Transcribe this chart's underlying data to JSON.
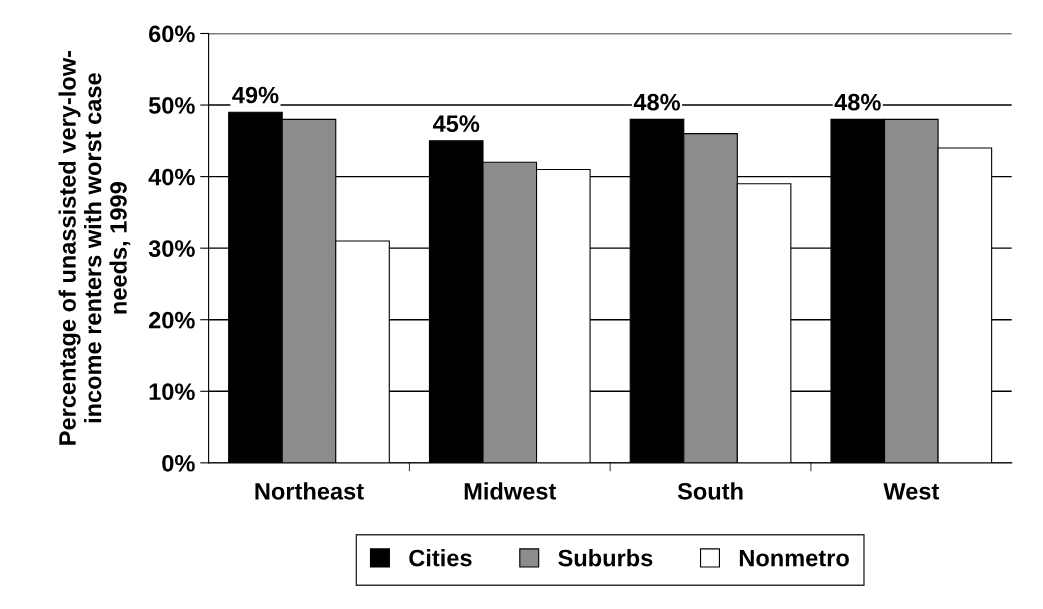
{
  "chart_data": {
    "type": "bar",
    "ylabel": "Percentage of unassisted very-low-\nincome renters with worst case\nneeds, 1999",
    "categories": [
      "Northeast",
      "Midwest",
      "South",
      "West"
    ],
    "series": [
      {
        "name": "Cities",
        "color": "#000000",
        "values": [
          49,
          45,
          48,
          48
        ],
        "value_labels": [
          "49%",
          "45%",
          "48%",
          "48%"
        ]
      },
      {
        "name": "Suburbs",
        "color": "#8c8c8c",
        "values": [
          48,
          42,
          46,
          48
        ]
      },
      {
        "name": "Nonmetro",
        "color": "#ffffff",
        "values": [
          31,
          41,
          39,
          44
        ]
      }
    ],
    "ylim": [
      0,
      60
    ],
    "yticks": [
      {
        "value": 0,
        "label": "0%"
      },
      {
        "value": 10,
        "label": "10%"
      },
      {
        "value": 20,
        "label": "20%"
      },
      {
        "value": 30,
        "label": "30%"
      },
      {
        "value": 40,
        "label": "40%"
      },
      {
        "value": 50,
        "label": "50%"
      },
      {
        "value": 60,
        "label": "60%"
      }
    ],
    "grid": "y",
    "legend": "bottom"
  }
}
